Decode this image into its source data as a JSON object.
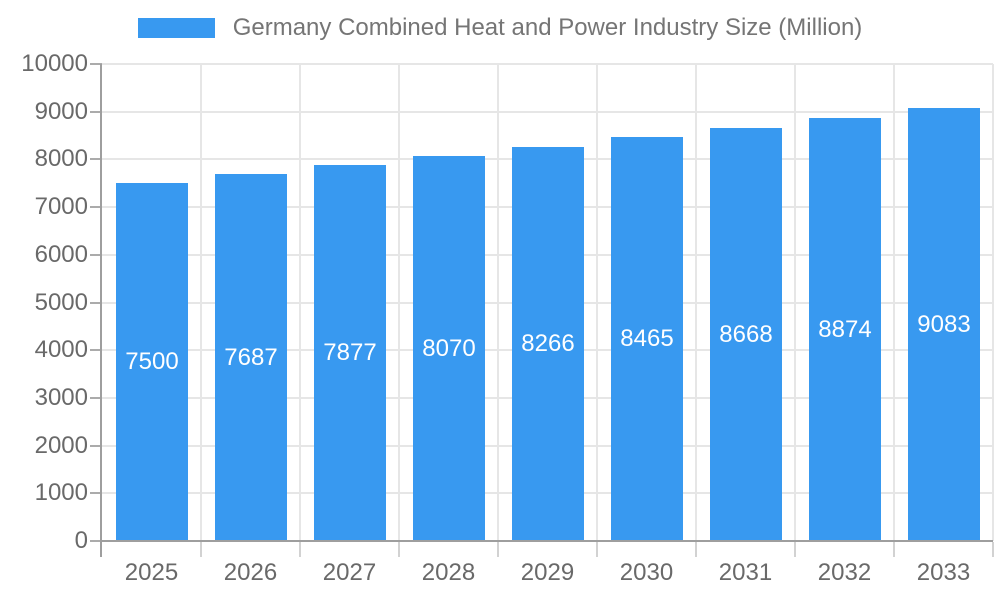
{
  "legend": {
    "label": "Germany Combined Heat and Power Industry Size (Million)"
  },
  "chart_data": {
    "type": "bar",
    "title": "",
    "legend_entries": [
      "Germany Combined Heat and Power Industry Size (Million)"
    ],
    "legend_position": "top-center",
    "categories": [
      "2025",
      "2026",
      "2027",
      "2028",
      "2029",
      "2030",
      "2031",
      "2032",
      "2033"
    ],
    "values": [
      7500,
      7687,
      7877,
      8070,
      8266,
      8465,
      8668,
      8874,
      9083
    ],
    "value_label_position": "inside-middle",
    "xlabel": "",
    "ylabel": "",
    "ylim": [
      0,
      10000
    ],
    "ytick_step": 1000,
    "ytick_labels": [
      "0",
      "1000",
      "2000",
      "3000",
      "4000",
      "5000",
      "6000",
      "7000",
      "8000",
      "9000",
      "10000"
    ],
    "grid": true,
    "colors": {
      "bar": "#3899f0",
      "grid": "#e6e6e6",
      "axis": "#9e9e9e",
      "y_tick": "#ababab",
      "x_tick": "#d2d2d2",
      "axis_text": "#696969",
      "legend_text": "#757575",
      "value_label": "#ffffff",
      "background": "#ffffff"
    }
  }
}
